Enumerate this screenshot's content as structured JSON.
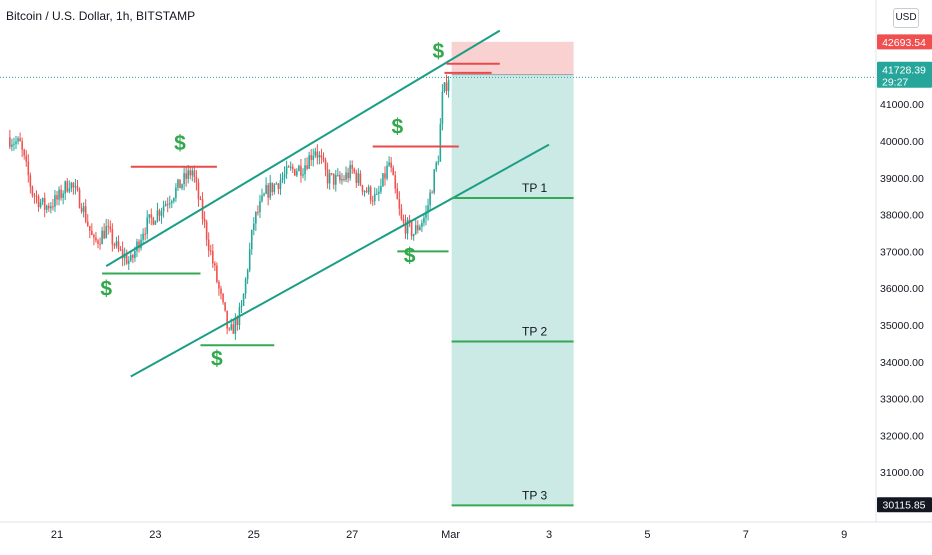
{
  "header": {
    "title": "Bitcoin / U.S. Dollar, 1h, BITSTAMP"
  },
  "scale": {
    "currency": "USD"
  },
  "colors": {
    "up": "#26a69a",
    "down": "#ef5350",
    "channel": "#1a9e86",
    "level_green": "#35a853",
    "level_red": "#e84a4a",
    "dollar": "#31a84b",
    "tp_fill": "#b9e2dc",
    "sl_fill": "#f8c9c9",
    "badge_red": "#ef4f4f",
    "badge_gray": "#555a66",
    "badge_teal": "#26a69a",
    "badge_dark": "#131722"
  },
  "chart_data": {
    "type": "line",
    "title": "Bitcoin / U.S. Dollar, 1h, BITSTAMP",
    "ylabel": "USD",
    "ylim": [
      29500,
      43500
    ],
    "yticks": [
      "31000.00",
      "32000.00",
      "33000.00",
      "34000.00",
      "35000.00",
      "36000.00",
      "37000.00",
      "38000.00",
      "39000.00",
      "40000.00",
      "41000.00",
      "42000.00"
    ],
    "xticks": [
      "21",
      "23",
      "25",
      "27",
      "Mar",
      "3",
      "5",
      "7",
      "9"
    ],
    "price_path": [
      [
        "2022-02-20 00:00",
        40100
      ],
      [
        "2022-02-20 06:00",
        39900
      ],
      [
        "2022-02-20 12:00",
        38600
      ],
      [
        "2022-02-20 18:00",
        38200
      ],
      [
        "2022-02-21 00:00",
        38400
      ],
      [
        "2022-02-21 06:00",
        38900
      ],
      [
        "2022-02-21 12:00",
        38300
      ],
      [
        "2022-02-21 18:00",
        37200
      ],
      [
        "2022-02-22 00:00",
        37600
      ],
      [
        "2022-02-22 06:00",
        37000
      ],
      [
        "2022-02-22 12:00",
        36700
      ],
      [
        "2022-02-22 18:00",
        37600
      ],
      [
        "2022-02-23 00:00",
        38000
      ],
      [
        "2022-02-23 06:00",
        38400
      ],
      [
        "2022-02-23 12:00",
        38800
      ],
      [
        "2022-02-23 18:00",
        39200
      ],
      [
        "2022-02-24 00:00",
        37700
      ],
      [
        "2022-02-24 06:00",
        36200
      ],
      [
        "2022-02-24 12:00",
        34700
      ],
      [
        "2022-02-24 18:00",
        35400
      ],
      [
        "2022-02-25 00:00",
        37800
      ],
      [
        "2022-02-25 06:00",
        38600
      ],
      [
        "2022-02-25 12:00",
        38900
      ],
      [
        "2022-02-25 18:00",
        39200
      ],
      [
        "2022-02-26 00:00",
        39300
      ],
      [
        "2022-02-26 06:00",
        39800
      ],
      [
        "2022-02-26 12:00",
        39000
      ],
      [
        "2022-02-26 18:00",
        38900
      ],
      [
        "2022-02-27 00:00",
        39200
      ],
      [
        "2022-02-27 06:00",
        38700
      ],
      [
        "2022-02-27 12:00",
        38400
      ],
      [
        "2022-02-27 18:00",
        39400
      ],
      [
        "2022-02-28 00:00",
        37800
      ],
      [
        "2022-02-28 06:00",
        37500
      ],
      [
        "2022-02-28 12:00",
        38000
      ],
      [
        "2022-02-28 18:00",
        39600
      ],
      [
        "2022-02-28 20:00",
        41200
      ],
      [
        "2022-02-28 23:00",
        41750
      ]
    ],
    "current_price": 41728.39,
    "countdown": "29:27",
    "badges": [
      {
        "label": "42693.54",
        "value": 42693.54,
        "kind": "stop"
      },
      {
        "label": "41803.61",
        "value": 41803.61,
        "kind": "entry"
      },
      {
        "label": "30115.85",
        "value": 30115.85,
        "kind": "tp3"
      }
    ],
    "channel": {
      "upper": [
        [
          "2022-02-22 00:00",
          36600
        ],
        [
          "2022-03-02 00:00",
          43000
        ]
      ],
      "lower": [
        [
          "2022-02-22 12:00",
          33600
        ],
        [
          "2022-03-03 00:00",
          39900
        ]
      ]
    },
    "support_levels": [
      {
        "y": 36400,
        "x0": "2022-02-21 22:00",
        "x1": "2022-02-23 22:00"
      },
      {
        "y": 34450,
        "x0": "2022-02-23 22:00",
        "x1": "2022-02-25 10:00"
      },
      {
        "y": 37000,
        "x0": "2022-02-27 22:00",
        "x1": "2022-02-28 23:00"
      }
    ],
    "resistance_levels": [
      {
        "y": 39300,
        "x0": "2022-02-22 12:00",
        "x1": "2022-02-24 06:00"
      },
      {
        "y": 39850,
        "x0": "2022-02-27 10:00",
        "x1": "2022-03-01 04:00"
      },
      {
        "y": 42100,
        "x0": "2022-02-28 22:00",
        "x1": "2022-03-02 00:00"
      },
      {
        "y": 41850,
        "x0": "2022-02-28 21:00",
        "x1": "2022-03-01 20:00"
      }
    ],
    "dollar_markers": [
      {
        "label": "$",
        "x": "2022-02-23 12:00",
        "y": 39750
      },
      {
        "label": "$",
        "x": "2022-02-22 00:00",
        "y": 35800
      },
      {
        "label": "$",
        "x": "2022-02-24 06:00",
        "y": 33900
      },
      {
        "label": "$",
        "x": "2022-02-27 22:00",
        "y": 40200
      },
      {
        "label": "$",
        "x": "2022-02-28 04:00",
        "y": 36700
      },
      {
        "label": "$",
        "x": "2022-02-28 18:00",
        "y": 42250
      }
    ],
    "position": {
      "x0": "2022-03-01 00:30",
      "x1": "2022-03-03 12:00",
      "entry": 41803.61,
      "stop": 42693.54,
      "target": 30115.85
    },
    "targets": [
      {
        "label": "TP 1",
        "value": 38450,
        "x0": "2022-03-01 00:30",
        "x1": "2022-03-03 12:00"
      },
      {
        "label": "TP 2",
        "value": 34550,
        "x0": "2022-03-01 00:30",
        "x1": "2022-03-03 12:00"
      },
      {
        "label": "TP 3",
        "value": 30100,
        "x0": "2022-03-01 00:30",
        "x1": "2022-03-03 12:00"
      }
    ]
  }
}
